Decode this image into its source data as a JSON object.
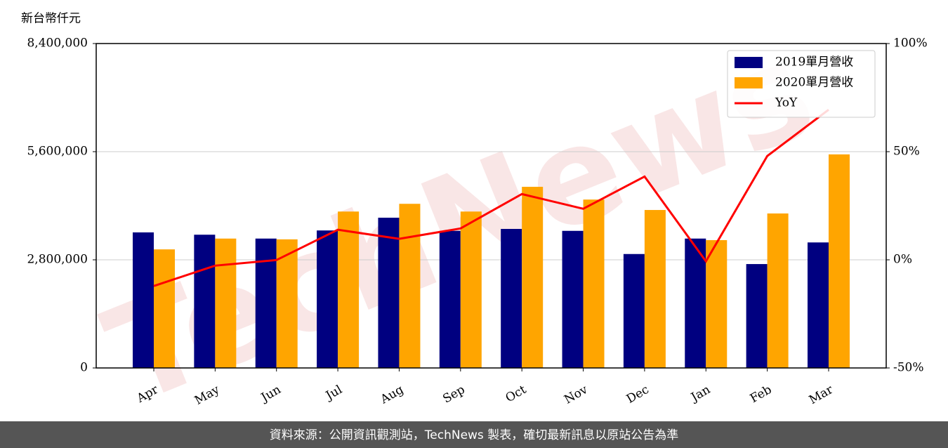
{
  "chart_data": {
    "type": "bar_line",
    "y_label": "新台幣仟元",
    "watermark": "TechNews",
    "footer": "資料來源：公開資訊觀測站，TechNews 製表，確切最新訊息以原站公告為準",
    "categories": [
      "Apr",
      "May",
      "Jun",
      "Jul",
      "Aug",
      "Sep",
      "Oct",
      "Nov",
      "Dec",
      "Jan",
      "Feb",
      "Mar"
    ],
    "series": [
      {
        "name": "2019單月營收",
        "color": "#000080",
        "values": [
          3510000,
          3450000,
          3350000,
          3560000,
          3890000,
          3550000,
          3600000,
          3550000,
          2950000,
          3350000,
          2690000,
          3250000
        ]
      },
      {
        "name": "2020單月營收",
        "color": "#ffa500",
        "values": [
          3070000,
          3350000,
          3330000,
          4050000,
          4250000,
          4050000,
          4690000,
          4360000,
          4090000,
          3310000,
          4000000,
          5530000
        ]
      },
      {
        "name": "YoY",
        "color": "#ff0000",
        "axis": "y2",
        "values": [
          -12.1,
          -2.7,
          -0.1,
          13.9,
          9.7,
          14.5,
          30.4,
          23.6,
          38.5,
          -0.7,
          48,
          69.4
        ]
      }
    ],
    "ylim": [
      0,
      8400000
    ],
    "yticks": [
      0,
      {
        "value": 2800000,
        "label": "2,800,000"
      },
      {
        "value": 5600000,
        "label": "5,600,000"
      },
      {
        "value": 8400000,
        "label": "8,400,000"
      }
    ],
    "y2lim": [
      -50,
      100
    ],
    "y2ticks": [
      {
        "value": -50,
        "label": "-50%"
      },
      {
        "value": 0,
        "label": "0%"
      },
      {
        "value": 50,
        "label": "50%"
      },
      {
        "value": 100,
        "label": "100%"
      }
    ],
    "grid": true,
    "legend": "upper right"
  }
}
